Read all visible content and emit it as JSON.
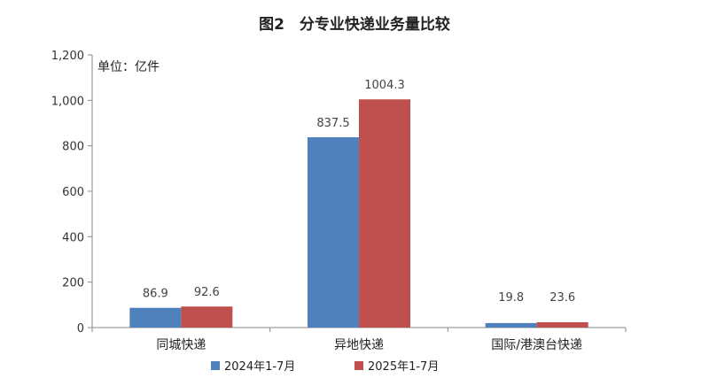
{
  "chart_data": {
    "type": "bar",
    "title": "图2　分专业快递业务量比较",
    "unit_label": "单位：亿件",
    "categories": [
      "同城快递",
      "异地快递",
      "国际/港澳台快递"
    ],
    "series": [
      {
        "name": "2024年1-7月",
        "color": "#4f81bd",
        "values": [
          86.9,
          837.5,
          19.8
        ],
        "labels": [
          "86.9",
          "837.5",
          "19.8"
        ]
      },
      {
        "name": "2025年1-7月",
        "color": "#c0504d",
        "values": [
          92.6,
          1004.3,
          23.6
        ],
        "labels": [
          "92.6",
          "1004.3",
          "23.6"
        ]
      }
    ],
    "y_ticks": [
      "0",
      "200",
      "400",
      "600",
      "800",
      "1,000",
      "1,200"
    ],
    "ylim": [
      0,
      1200
    ],
    "grid": false,
    "legend_position": "bottom"
  }
}
